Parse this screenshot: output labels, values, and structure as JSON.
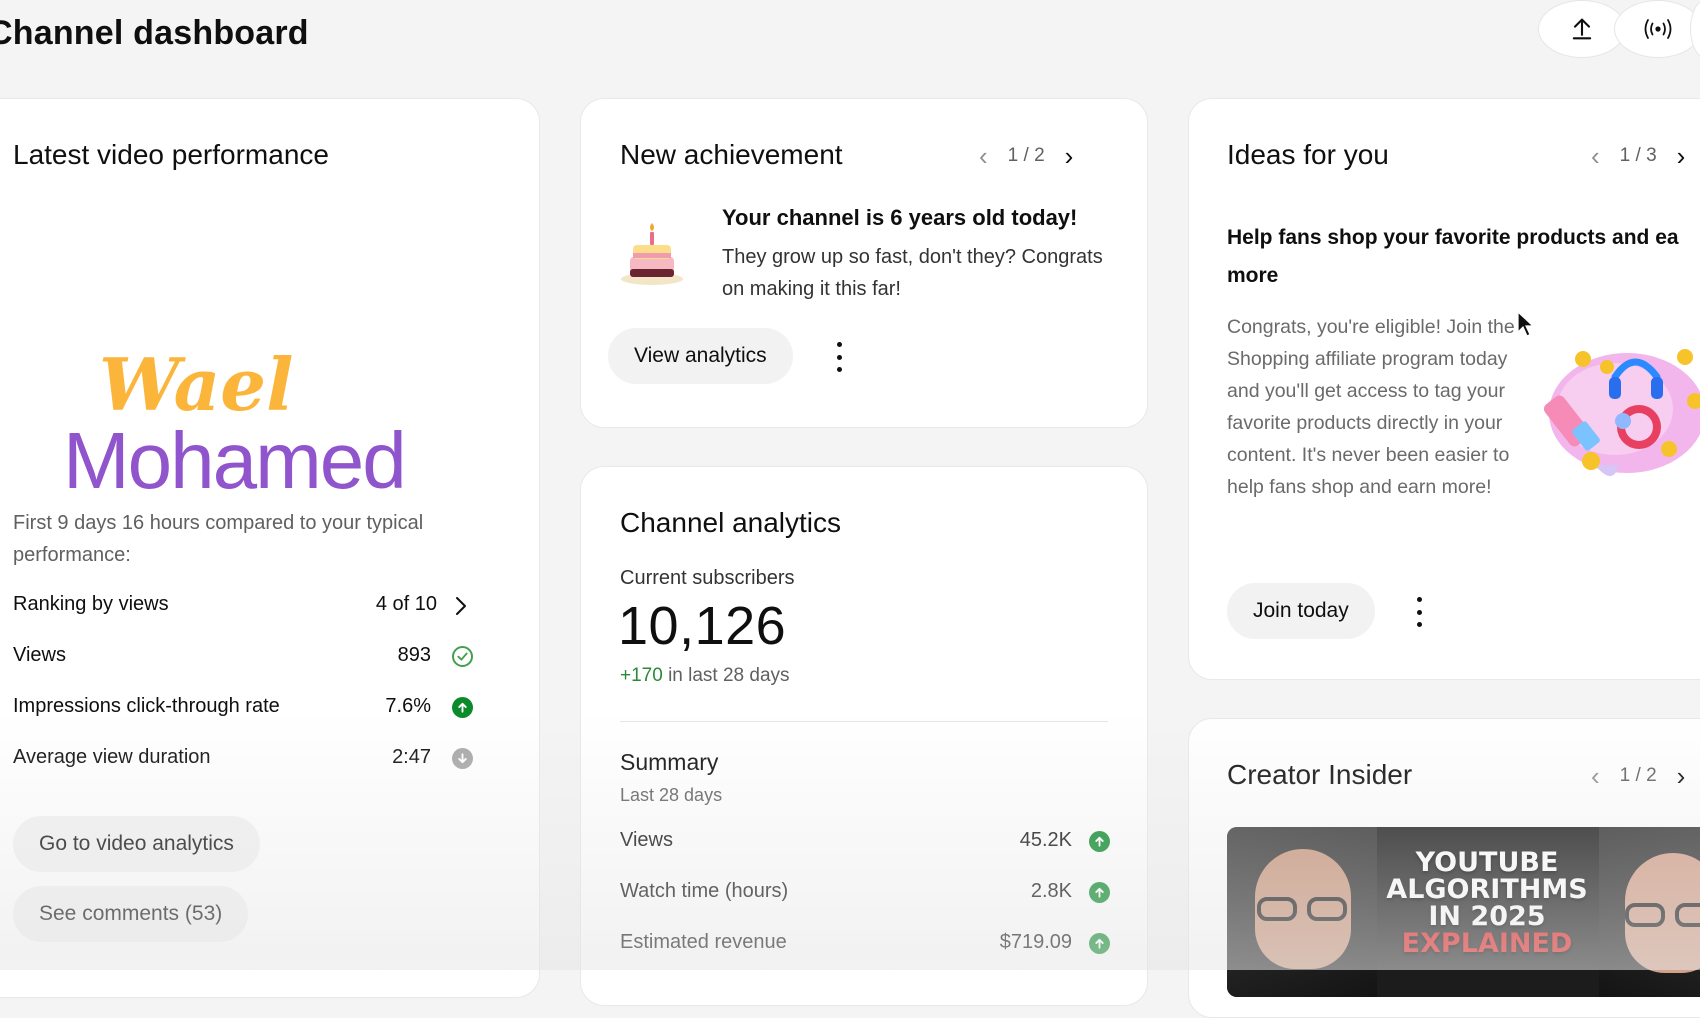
{
  "header": {
    "title": "Channel dashboard",
    "upload_icon": "upload-icon",
    "live_icon": "broadcast-icon"
  },
  "latest_video": {
    "title": "Latest video performance",
    "thumbnail": {
      "line1": "Wael",
      "line2": "Mohamed",
      "color1": "#fbb53b",
      "color2": "#9055cc"
    },
    "intro": "First 9 days 16 hours compared to your typical performance:",
    "metrics": [
      {
        "label": "Ranking by views",
        "value": "4 of 10",
        "indicator": "chevron-right"
      },
      {
        "label": "Views",
        "value": "893",
        "indicator": "check"
      },
      {
        "label": "Impressions click-through rate",
        "value": "7.6%",
        "indicator": "up"
      },
      {
        "label": "Average view duration",
        "value": "2:47",
        "indicator": "down"
      }
    ],
    "analytics_button": "Go to video analytics",
    "comments_button": "See comments (53)"
  },
  "achievement": {
    "title": "New achievement",
    "pager": "1 / 2",
    "headline": "Your channel is 6 years old today!",
    "body": "They grow up so fast, don't they? Congrats on making it this far!",
    "button": "View analytics",
    "icon": "birthday-cake-icon"
  },
  "channel_analytics": {
    "title": "Channel analytics",
    "subscribers_label": "Current subscribers",
    "subscribers_value": "10,126",
    "subscribers_change": "+170",
    "subscribers_change_suffix": "in last 28 days",
    "summary_title": "Summary",
    "summary_period": "Last 28 days",
    "summary": [
      {
        "label": "Views",
        "value": "45.2K"
      },
      {
        "label": "Watch time (hours)",
        "value": "2.8K"
      },
      {
        "label": "Estimated revenue",
        "value": "$719.09"
      }
    ]
  },
  "ideas": {
    "title": "Ideas for you",
    "pager": "1 / 3",
    "headline": "Help fans shop your favorite products and ea more",
    "body": "Congrats, you're eligible! Join the Shopping affiliate program today and you'll get access to tag your favorite products directly in your content. It's never been easier to help fans shop and earn more!",
    "button": "Join today",
    "icon": "shopping-illustration-icon"
  },
  "creator_insider": {
    "title": "Creator Insider",
    "pager": "1 / 2",
    "thumb_line1": "YOUTUBE",
    "thumb_line2": "ALGORITHMS",
    "thumb_line3": "IN 2025",
    "thumb_line4": "EXPLAINED"
  },
  "colors": {
    "positive": "#0a8a2a",
    "green_text": "#2a8a3a",
    "accent_red": "#e02020"
  }
}
